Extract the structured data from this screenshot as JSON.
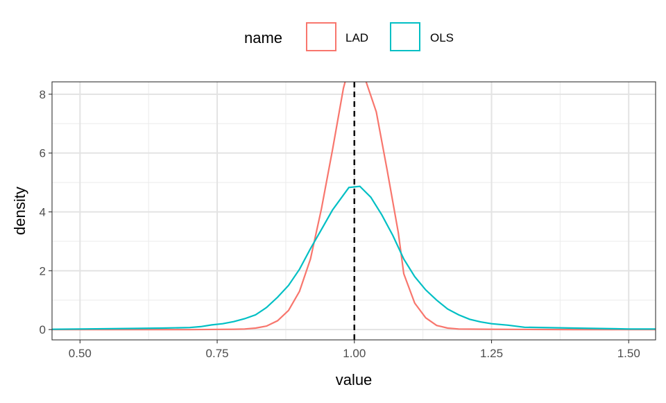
{
  "chart_data": {
    "type": "line",
    "title": "",
    "xlabel": "value",
    "ylabel": "density",
    "xlim": [
      0.449,
      1.549
    ],
    "ylim": [
      -0.35,
      8.42
    ],
    "xticks": [
      0.5,
      0.75,
      1.0,
      1.25,
      1.5
    ],
    "xtick_labels": [
      "0.50",
      "0.75",
      "1.00",
      "1.25",
      "1.50"
    ],
    "yticks": [
      0,
      2,
      4,
      6,
      8
    ],
    "ytick_labels": [
      "0",
      "2",
      "4",
      "6",
      "8"
    ],
    "grid": true,
    "legend": {
      "title": "name",
      "placement": "top"
    },
    "reference_line": {
      "x": 1.0,
      "style": "dashed",
      "color": "#000000"
    },
    "series": [
      {
        "name": "LAD",
        "color": "#F8766D",
        "x": [
          0.449,
          0.6,
          0.7,
          0.78,
          0.8,
          0.82,
          0.84,
          0.86,
          0.88,
          0.9,
          0.92,
          0.94,
          0.96,
          0.98,
          1.0,
          1.02,
          1.04,
          1.06,
          1.08,
          1.09,
          1.11,
          1.13,
          1.15,
          1.17,
          1.19,
          1.25,
          1.4,
          1.549
        ],
        "y": [
          0,
          0,
          0,
          0.01,
          0.02,
          0.05,
          0.12,
          0.3,
          0.65,
          1.3,
          2.4,
          4.1,
          6.1,
          8.2,
          9.6,
          8.5,
          7.4,
          5.4,
          3.3,
          1.9,
          0.9,
          0.4,
          0.14,
          0.05,
          0.02,
          0.01,
          0,
          0
        ]
      },
      {
        "name": "OLS",
        "color": "#00BFC4",
        "x": [
          0.449,
          0.5,
          0.6,
          0.65,
          0.7,
          0.72,
          0.74,
          0.76,
          0.78,
          0.8,
          0.82,
          0.84,
          0.86,
          0.88,
          0.9,
          0.92,
          0.94,
          0.96,
          0.99,
          1.01,
          1.03,
          1.05,
          1.07,
          1.09,
          1.11,
          1.13,
          1.15,
          1.17,
          1.19,
          1.21,
          1.23,
          1.25,
          1.28,
          1.31,
          1.4,
          1.5,
          1.549
        ],
        "y": [
          0.01,
          0.02,
          0.04,
          0.05,
          0.07,
          0.1,
          0.16,
          0.2,
          0.27,
          0.37,
          0.5,
          0.75,
          1.1,
          1.5,
          2.05,
          2.75,
          3.4,
          4.06,
          4.83,
          4.87,
          4.5,
          3.9,
          3.2,
          2.4,
          1.8,
          1.35,
          1.0,
          0.7,
          0.5,
          0.35,
          0.26,
          0.2,
          0.15,
          0.08,
          0.05,
          0.02,
          0.02
        ]
      }
    ]
  }
}
